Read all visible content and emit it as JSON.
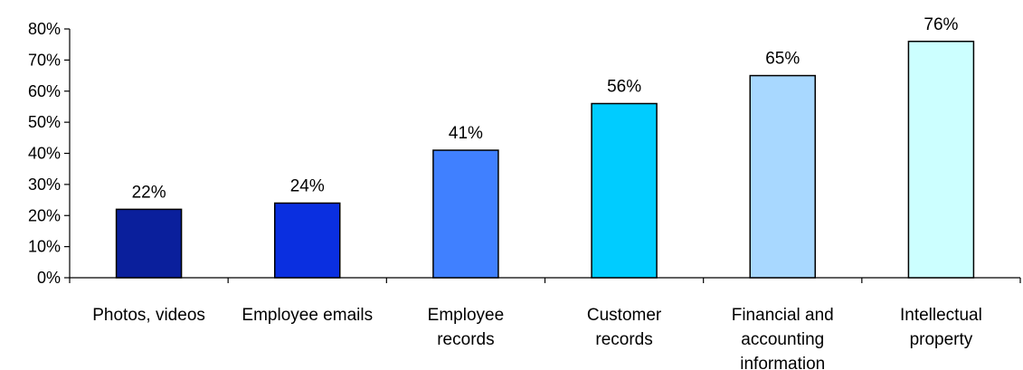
{
  "chart_data": {
    "type": "bar",
    "title": "",
    "xlabel": "",
    "ylabel": "",
    "ylim": [
      0,
      80
    ],
    "yticks": [
      0,
      10,
      20,
      30,
      40,
      50,
      60,
      70,
      80
    ],
    "ytick_labels": [
      "0%",
      "10%",
      "20%",
      "30%",
      "40%",
      "50%",
      "60%",
      "70%",
      "80%"
    ],
    "grid": false,
    "legend": "none",
    "categories": [
      [
        "Photos, videos"
      ],
      [
        "Employee emails"
      ],
      [
        "Employee",
        "records"
      ],
      [
        "Customer",
        "records"
      ],
      [
        "Financial and",
        "accounting",
        "information"
      ],
      [
        "Intellectual",
        "property"
      ]
    ],
    "values": [
      22,
      24,
      41,
      56,
      65,
      76
    ],
    "data_labels": [
      "22%",
      "24%",
      "41%",
      "56%",
      "65%",
      "76%"
    ],
    "colors": [
      "#0a1f9c",
      "#0a2fe0",
      "#4080ff",
      "#00ccff",
      "#a8d8ff",
      "#ccffff"
    ]
  }
}
